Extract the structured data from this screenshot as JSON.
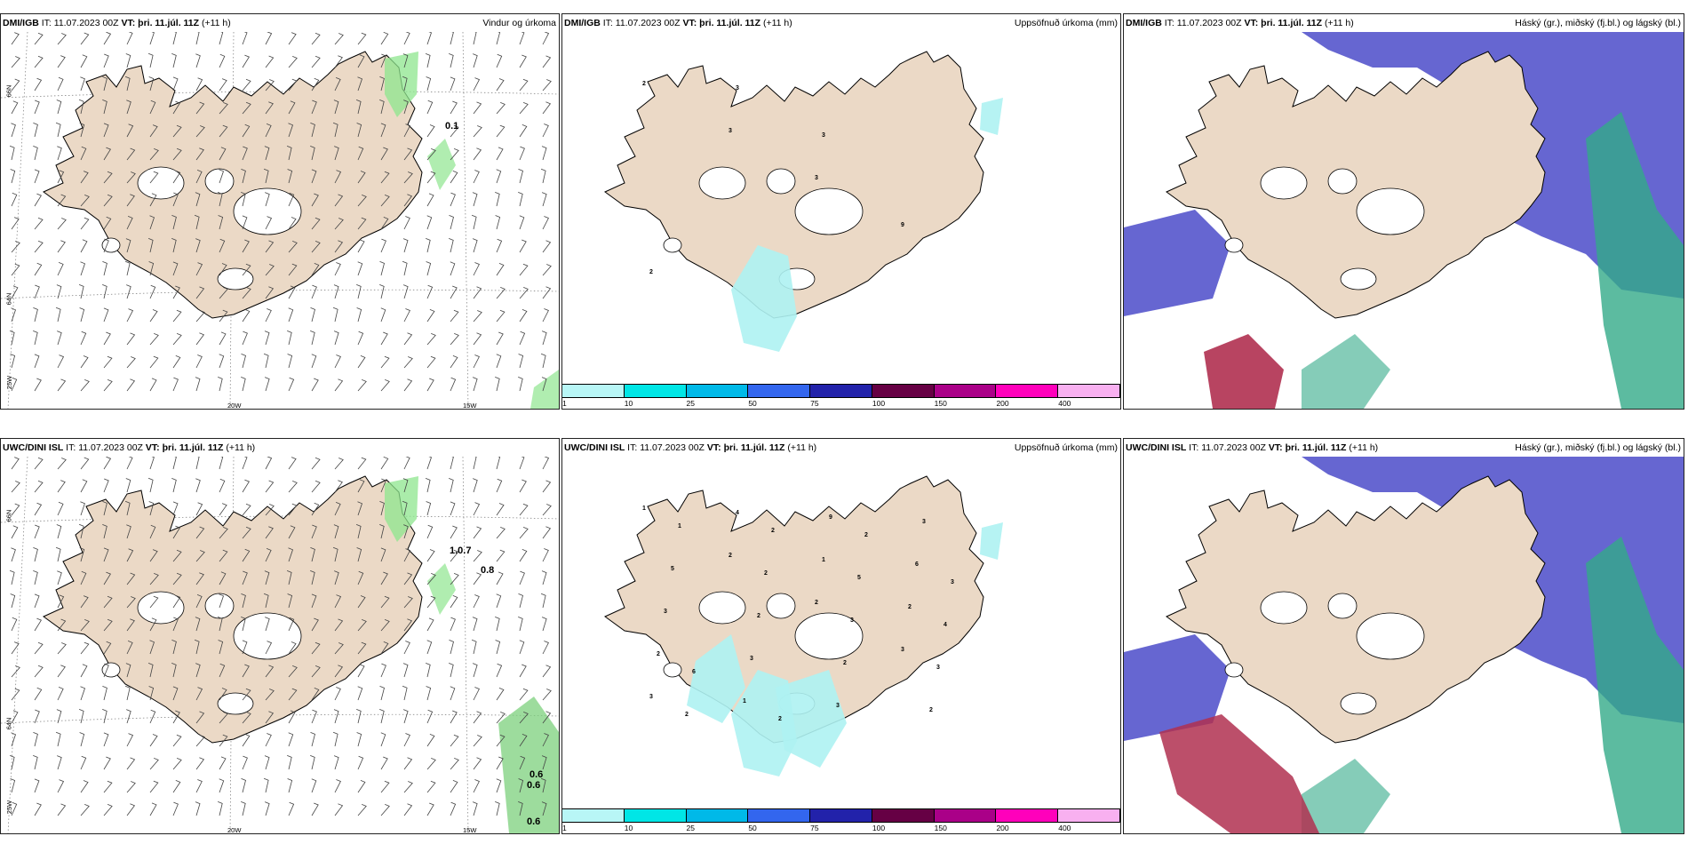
{
  "row_top": {
    "wind": {
      "model": "DMI/IGB",
      "it_label": "IT:",
      "it_value": "11.07.2023 00Z",
      "vt_label": "VT:",
      "vt_value": "þri. 11.júl. 11Z",
      "lead": "(+11 h)",
      "title": "Vindur og úrkoma",
      "values": [
        "0.1"
      ]
    },
    "precip": {
      "model": "DMI/IGB",
      "it_label": "IT:",
      "it_value": "11.07.2023 00Z",
      "vt_label": "VT:",
      "vt_value": "þri. 11.júl. 11Z",
      "lead": "(+11 h)",
      "title": "Uppsöfnuð úrkoma (mm)",
      "values": [
        "2",
        "3",
        "3",
        "9",
        "2",
        "3",
        "3"
      ]
    },
    "cloud": {
      "model": "DMI/IGB",
      "it_label": "IT:",
      "it_value": "11.07.2023 00Z",
      "vt_label": "VT:",
      "vt_value": "þri. 11.júl. 11Z",
      "lead": "(+11 h)",
      "title": "Háský (gr.), miðský (fj.bl.) og lágský (bl.)"
    }
  },
  "row_bottom": {
    "wind": {
      "model": "UWC/DINI ISL",
      "it_label": "IT:",
      "it_value": "11.07.2023 00Z",
      "vt_label": "VT:",
      "vt_value": "þri. 11.júl. 11Z",
      "lead": "(+11 h)",
      "title": "",
      "values": [
        "1.0.7",
        "0.8",
        "0.6",
        "0.6",
        "0.6"
      ]
    },
    "precip": {
      "model": "UWC/DINI ISL",
      "it_label": "IT:",
      "it_value": "11.07.2023 00Z",
      "vt_label": "VT:",
      "vt_value": "þri. 11.júl. 11Z",
      "lead": "(+11 h)",
      "title": "Uppsöfnuð úrkoma (mm)",
      "values": [
        "1",
        "2",
        "2",
        "3",
        "3",
        "4",
        "1",
        "2",
        "2",
        "1",
        "9",
        "6",
        "3",
        "3",
        "3",
        "3",
        "5",
        "2",
        "2",
        "2",
        "1",
        "2",
        "3",
        "3",
        "2",
        "2",
        "5",
        "4",
        "6",
        "2",
        "2",
        "3"
      ]
    },
    "cloud": {
      "model": "UWC/DINI ISL",
      "it_label": "IT:",
      "it_value": "11.07.2023 00Z",
      "vt_label": "VT:",
      "vt_value": "þri. 11.júl. 11Z",
      "lead": "(+11 h)",
      "title": "Háský (gr.), miðský (fj.bl.) og lágský (bl.)"
    }
  },
  "coords": {
    "lat66": "66N",
    "lat64": "64N",
    "lon25": "25W",
    "lon20": "20W",
    "lon15": "15W"
  },
  "colorbar": {
    "ticks": [
      "1",
      "10",
      "25",
      "50",
      "75",
      "100",
      "150",
      "200",
      "400"
    ],
    "colors": [
      "#b8f6f6",
      "#00e6e6",
      "#00b9e8",
      "#3366ee",
      "#2222aa",
      "#660044",
      "#aa0088",
      "#ff00bb",
      "#f8b0f0"
    ]
  },
  "colors": {
    "land": "#ebd9c6",
    "rain_light": "#aef2f2",
    "green": "#8ee68e",
    "high": "#5555cc",
    "mid": "#33aa88",
    "low": "#b03050"
  }
}
